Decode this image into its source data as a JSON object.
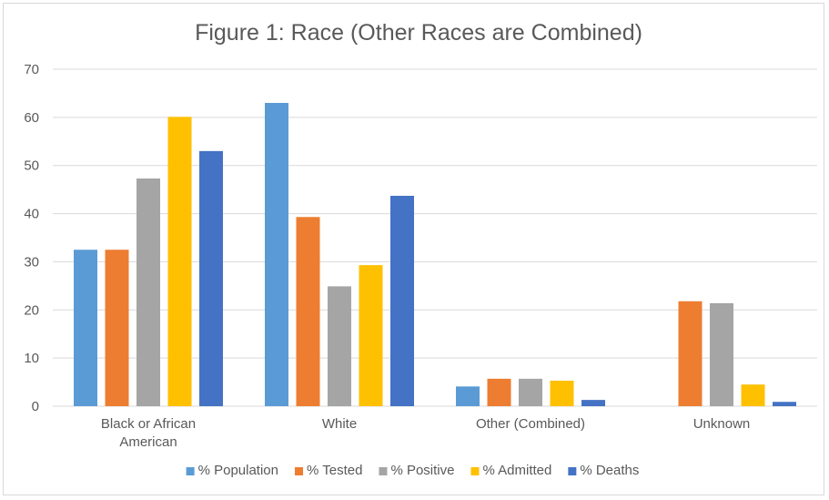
{
  "chart_data": {
    "type": "bar",
    "title": "Figure 1: Race (Other Races are Combined)",
    "xlabel": "",
    "ylabel": "",
    "ylim": [
      0,
      70
    ],
    "yticks": [
      0,
      10,
      20,
      30,
      40,
      50,
      60,
      70
    ],
    "grid": true,
    "legend_position": "bottom",
    "categories": [
      [
        "Black or African",
        "American"
      ],
      [
        "White"
      ],
      [
        "Other (Combined)"
      ],
      [
        "Unknown"
      ]
    ],
    "series": [
      {
        "name": "% Population",
        "color": "#5B9BD5",
        "values": [
          32.5,
          63.0,
          4.1,
          0
        ]
      },
      {
        "name": "% Tested",
        "color": "#ED7D31",
        "values": [
          32.5,
          39.3,
          5.7,
          21.8
        ]
      },
      {
        "name": "% Positive",
        "color": "#A5A5A5",
        "values": [
          47.3,
          24.9,
          5.7,
          21.4
        ]
      },
      {
        "name": "% Admitted",
        "color": "#FFC000",
        "values": [
          60.1,
          29.3,
          5.3,
          4.5
        ]
      },
      {
        "name": "% Deaths",
        "color": "#4472C4",
        "values": [
          53.0,
          43.7,
          1.3,
          0.9
        ]
      }
    ]
  }
}
